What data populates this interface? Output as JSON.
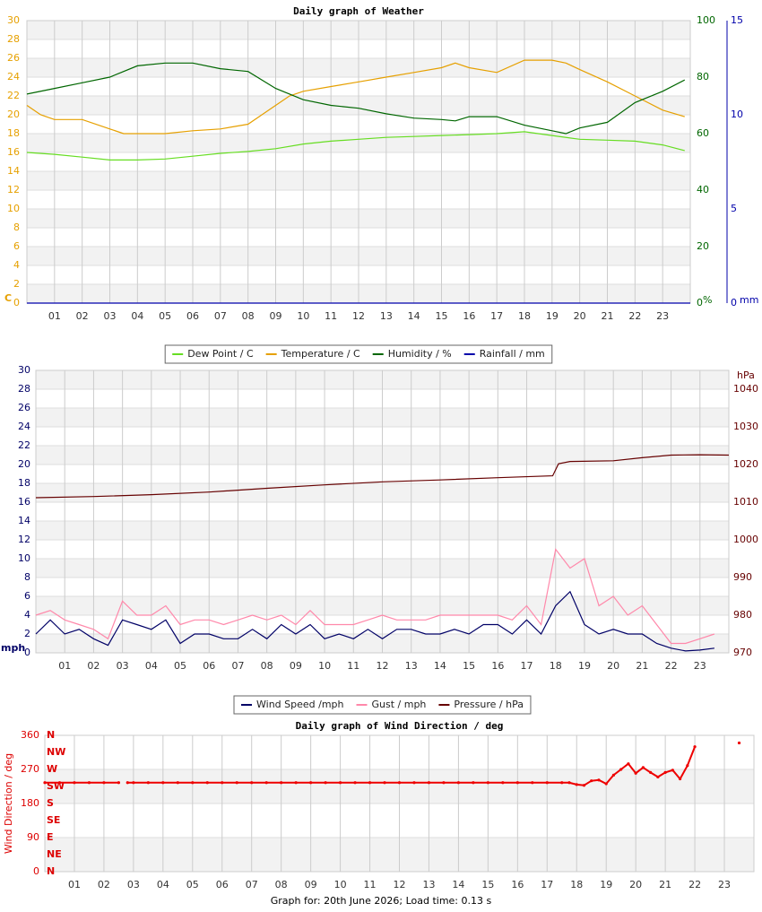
{
  "chart_data": [
    {
      "type": "line",
      "title": "Daily graph of Weather",
      "xlim": [
        0,
        24
      ],
      "xticks": [
        {
          "value": 1,
          "label": "01"
        },
        {
          "value": 2,
          "label": "02"
        },
        {
          "value": 3,
          "label": "03"
        },
        {
          "value": 4,
          "label": "04"
        },
        {
          "value": 5,
          "label": "05"
        },
        {
          "value": 6,
          "label": "06"
        },
        {
          "value": 7,
          "label": "07"
        },
        {
          "value": 8,
          "label": "08"
        },
        {
          "value": 9,
          "label": "09"
        },
        {
          "value": 10,
          "label": "10"
        },
        {
          "value": 11,
          "label": "11"
        },
        {
          "value": 12,
          "label": "12"
        },
        {
          "value": 13,
          "label": "13"
        },
        {
          "value": 14,
          "label": "14"
        },
        {
          "value": 15,
          "label": "15"
        },
        {
          "value": 16,
          "label": "16"
        },
        {
          "value": 17,
          "label": "17"
        },
        {
          "value": 18,
          "label": "18"
        },
        {
          "value": 19,
          "label": "19"
        },
        {
          "value": 20,
          "label": "20"
        },
        {
          "value": 21,
          "label": "21"
        },
        {
          "value": 22,
          "label": "22"
        },
        {
          "value": 23,
          "label": "23"
        }
      ],
      "ylim": [
        0,
        30
      ],
      "yticks": [
        0,
        2,
        4,
        6,
        8,
        10,
        12,
        14,
        16,
        18,
        20,
        22,
        24,
        26,
        28,
        30
      ],
      "ylabel": "C",
      "y2lim": [
        0,
        100
      ],
      "y2ticks": [
        0,
        20,
        40,
        60,
        80,
        100
      ],
      "y2label": "%",
      "y3lim": [
        0,
        15
      ],
      "y3ticks": [
        0,
        5,
        10,
        15
      ],
      "y3label": "mm",
      "grid": true,
      "legend": "bottom",
      "series": [
        {
          "name": "Dew Point / C",
          "color": "#66dd22",
          "axis": "y",
          "x": [
            0,
            1,
            2,
            3,
            4,
            5,
            6,
            7,
            8,
            9,
            10,
            11,
            12,
            13,
            14,
            15,
            16,
            17,
            18,
            19,
            20,
            21,
            22,
            23,
            23.8
          ],
          "values": [
            16,
            15.8,
            15.5,
            15.2,
            15.2,
            15.3,
            15.6,
            15.9,
            16.1,
            16.4,
            16.9,
            17.2,
            17.4,
            17.6,
            17.7,
            17.8,
            17.9,
            18,
            18.2,
            17.8,
            17.4,
            17.3,
            17.2,
            16.8,
            16.2
          ]
        },
        {
          "name": "Temperature / C",
          "color": "#e6a000",
          "axis": "y",
          "x": [
            0,
            0.5,
            1,
            2,
            3,
            3.5,
            4,
            5,
            6,
            7,
            8,
            8.5,
            9,
            9.5,
            10,
            11,
            12,
            13,
            14,
            15,
            15.5,
            16,
            17,
            18,
            19,
            19.5,
            20,
            21,
            22,
            23,
            23.8
          ],
          "values": [
            21,
            20,
            19.5,
            19.5,
            18.5,
            18,
            18,
            18,
            18.3,
            18.5,
            19,
            20,
            21,
            22,
            22.5,
            23,
            23.5,
            24,
            24.5,
            25,
            25.5,
            25,
            24.5,
            25.8,
            25.8,
            25.5,
            24.8,
            23.5,
            22,
            20.5,
            19.8
          ]
        },
        {
          "name": "Humidity / %",
          "color": "#006600",
          "axis": "y2",
          "x": [
            0,
            1,
            2,
            3,
            3.5,
            4,
            5,
            6,
            7,
            8,
            9,
            10,
            11,
            12,
            13,
            14,
            15,
            15.5,
            16,
            17,
            18,
            19,
            19.5,
            20,
            21,
            22,
            23,
            23.8
          ],
          "values": [
            74,
            76,
            78,
            80,
            82,
            84,
            85,
            85,
            83,
            82,
            76,
            72,
            70,
            69,
            67,
            65.5,
            65,
            64.5,
            66,
            66,
            63,
            61,
            60,
            62,
            64,
            71,
            75,
            79
          ]
        },
        {
          "name": "Rainfall / mm",
          "color": "#0000aa",
          "axis": "y3",
          "x": [
            0,
            24
          ],
          "values": [
            0,
            0
          ]
        }
      ]
    },
    {
      "type": "line",
      "xlim": [
        0,
        24
      ],
      "xticks": [
        {
          "value": 1,
          "label": "01"
        },
        {
          "value": 2,
          "label": "02"
        },
        {
          "value": 3,
          "label": "03"
        },
        {
          "value": 4,
          "label": "04"
        },
        {
          "value": 5,
          "label": "05"
        },
        {
          "value": 6,
          "label": "06"
        },
        {
          "value": 7,
          "label": "07"
        },
        {
          "value": 8,
          "label": "08"
        },
        {
          "value": 9,
          "label": "09"
        },
        {
          "value": 10,
          "label": "10"
        },
        {
          "value": 11,
          "label": "11"
        },
        {
          "value": 12,
          "label": "12"
        },
        {
          "value": 13,
          "label": "13"
        },
        {
          "value": 14,
          "label": "14"
        },
        {
          "value": 15,
          "label": "15"
        },
        {
          "value": 16,
          "label": "16"
        },
        {
          "value": 17,
          "label": "17"
        },
        {
          "value": 18,
          "label": "18"
        },
        {
          "value": 19,
          "label": "19"
        },
        {
          "value": 20,
          "label": "20"
        },
        {
          "value": 21,
          "label": "21"
        },
        {
          "value": 22,
          "label": "22"
        },
        {
          "value": 23,
          "label": "23"
        }
      ],
      "ylim": [
        0,
        30
      ],
      "yticks": [
        0,
        2,
        4,
        6,
        8,
        10,
        12,
        14,
        16,
        18,
        20,
        22,
        24,
        26,
        28,
        30
      ],
      "ylabel": "mph",
      "y2lim": [
        970,
        1045
      ],
      "y2ticks": [
        970,
        980,
        990,
        1000,
        1010,
        1020,
        1030,
        1040
      ],
      "y2label": "hPa",
      "grid": true,
      "legend": "bottom",
      "series": [
        {
          "name": "Wind Speed /mph",
          "color": "#000066",
          "axis": "y",
          "x": [
            0,
            0.5,
            1,
            1.5,
            2,
            2.5,
            3,
            3.5,
            4,
            4.5,
            5,
            5.5,
            6,
            6.5,
            7,
            7.5,
            8,
            8.5,
            9,
            9.5,
            10,
            10.5,
            11,
            11.5,
            12,
            12.5,
            13,
            13.5,
            14,
            14.5,
            15,
            15.5,
            16,
            16.5,
            17,
            17.5,
            18,
            18.5,
            19,
            19.5,
            20,
            20.5,
            21,
            21.5,
            22,
            22.5,
            23,
            23.5
          ],
          "values": [
            2,
            3.5,
            2,
            2.5,
            1.5,
            0.8,
            3.5,
            3,
            2.5,
            3.5,
            1,
            2,
            2,
            1.5,
            1.5,
            2.5,
            1.5,
            3,
            2,
            3,
            1.5,
            2,
            1.5,
            2.5,
            1.5,
            2.5,
            2.5,
            2,
            2,
            2.5,
            2,
            3,
            3,
            2,
            3.5,
            2,
            5,
            6.5,
            3,
            2,
            2.5,
            2,
            2,
            1,
            0.5,
            0.2,
            0.3,
            0.5
          ]
        },
        {
          "name": "Gust / mph",
          "color": "#ff88aa",
          "axis": "y",
          "x": [
            0,
            0.5,
            1,
            1.5,
            2,
            2.5,
            3,
            3.5,
            4,
            4.5,
            5,
            5.5,
            6,
            6.5,
            7,
            7.5,
            8,
            8.5,
            9,
            9.5,
            10,
            10.5,
            11,
            11.5,
            12,
            12.5,
            13,
            13.5,
            14,
            14.5,
            15,
            15.5,
            16,
            16.5,
            17,
            17.5,
            18,
            18.5,
            19,
            19.5,
            20,
            20.5,
            21,
            21.5,
            22,
            22.5,
            23,
            23.5
          ],
          "values": [
            4,
            4.5,
            3.5,
            3,
            2.5,
            1.5,
            5.5,
            4,
            4,
            5,
            3,
            3.5,
            3.5,
            3,
            3.5,
            4,
            3.5,
            4,
            3,
            4.5,
            3,
            3,
            3,
            3.5,
            4,
            3.5,
            3.5,
            3.5,
            4,
            4,
            4,
            4,
            4,
            3.5,
            5,
            3,
            11,
            9,
            10,
            5,
            6,
            4,
            5,
            3,
            1,
            1,
            1.5,
            2
          ]
        },
        {
          "name": "Pressure / hPa",
          "color": "#660000",
          "axis": "y2",
          "x": [
            0,
            2,
            4,
            6,
            8,
            10,
            12,
            14,
            16,
            17.9,
            18.1,
            18.5,
            20,
            21,
            22,
            23,
            24
          ],
          "values": [
            1011.2,
            1011.5,
            1012,
            1012.7,
            1013.7,
            1014.6,
            1015.4,
            1015.9,
            1016.5,
            1017,
            1020.2,
            1020.8,
            1021,
            1021.8,
            1022.5,
            1022.6,
            1022.5
          ]
        }
      ]
    },
    {
      "type": "line",
      "title": "Daily graph of Wind Direction / deg",
      "markers": true,
      "xlim": [
        0,
        24
      ],
      "xticks": [
        {
          "value": 1,
          "label": "01"
        },
        {
          "value": 2,
          "label": "02"
        },
        {
          "value": 3,
          "label": "03"
        },
        {
          "value": 4,
          "label": "04"
        },
        {
          "value": 5,
          "label": "05"
        },
        {
          "value": 6,
          "label": "06"
        },
        {
          "value": 7,
          "label": "07"
        },
        {
          "value": 8,
          "label": "08"
        },
        {
          "value": 9,
          "label": "09"
        },
        {
          "value": 10,
          "label": "10"
        },
        {
          "value": 11,
          "label": "11"
        },
        {
          "value": 12,
          "label": "12"
        },
        {
          "value": 13,
          "label": "13"
        },
        {
          "value": 14,
          "label": "14"
        },
        {
          "value": 15,
          "label": "15"
        },
        {
          "value": 16,
          "label": "16"
        },
        {
          "value": 17,
          "label": "17"
        },
        {
          "value": 18,
          "label": "18"
        },
        {
          "value": 19,
          "label": "19"
        },
        {
          "value": 20,
          "label": "20"
        },
        {
          "value": 21,
          "label": "21"
        },
        {
          "value": 22,
          "label": "22"
        },
        {
          "value": 23,
          "label": "23"
        }
      ],
      "ylim": [
        0,
        360
      ],
      "yticks": [
        0,
        90,
        180,
        270,
        360
      ],
      "ylabel": "Wind Direction / deg",
      "compass": [
        {
          "value": 360,
          "label": "N"
        },
        {
          "value": 315,
          "label": "NW"
        },
        {
          "value": 270,
          "label": "W"
        },
        {
          "value": 225,
          "label": "SW"
        },
        {
          "value": 180,
          "label": "S"
        },
        {
          "value": 135,
          "label": "SE"
        },
        {
          "value": 90,
          "label": "E"
        },
        {
          "value": 45,
          "label": "NE"
        },
        {
          "value": 0,
          "label": "N"
        }
      ],
      "grid": true,
      "series": [
        {
          "color": "#ee0000",
          "axis": "y",
          "x": [
            0,
            0.5,
            1,
            1.5,
            2,
            2.5,
            2.65,
            2.8,
            3,
            3.5,
            4,
            4.5,
            5,
            5.5,
            6,
            6.5,
            7,
            7.5,
            8,
            8.5,
            9,
            9.5,
            10,
            10.5,
            11,
            11.5,
            12,
            12.5,
            13,
            13.5,
            14,
            14.5,
            15,
            15.5,
            16,
            16.5,
            17,
            17.5,
            17.75,
            18,
            18.25,
            18.5,
            18.75,
            19,
            19.25,
            19.5,
            19.75,
            20,
            20.25,
            20.5,
            20.75,
            21,
            21.25,
            21.5,
            21.75,
            22,
            22.75,
            23.5
          ],
          "values": [
            235,
            235,
            235,
            235,
            235,
            235,
            null,
            235,
            235,
            235,
            235,
            235,
            235,
            235,
            235,
            235,
            235,
            235,
            235,
            235,
            235,
            235,
            235,
            235,
            235,
            235,
            235,
            235,
            235,
            235,
            235,
            235,
            235,
            235,
            235,
            235,
            235,
            235,
            235,
            230,
            228,
            240,
            242,
            232,
            255,
            270,
            285,
            260,
            275,
            262,
            250,
            262,
            268,
            245,
            280,
            330,
            null,
            340
          ]
        }
      ]
    }
  ],
  "footer": "Graph for: 20th June 2026; Load time: 0.13 s"
}
